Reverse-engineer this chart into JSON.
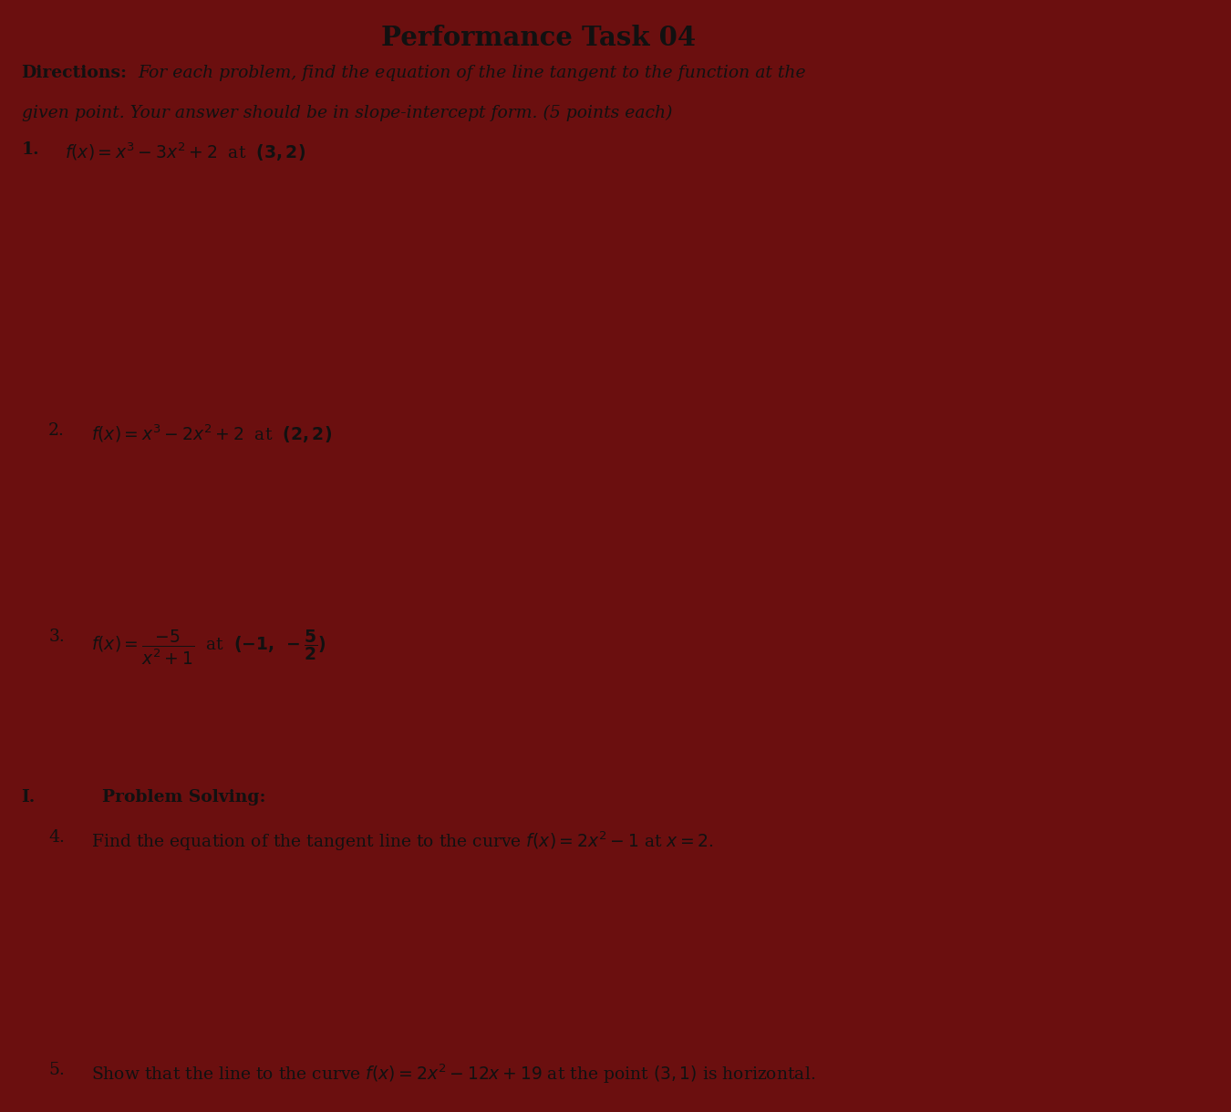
{
  "title": "Performance Task 04",
  "bg_color": "#8a8a8a",
  "side_color": "#6B0F0F",
  "text_color": "#111111",
  "title_fontsize": 21,
  "fs": 13.5,
  "directions_label": "Directions:",
  "directions_body1": "For each problem, find the equation of the line tangent to the function at the",
  "directions_body2": "given point. Your answer should be in slope-intercept form. (5 points each)",
  "p1_math": "f(x) = x^3 - 3x^2 + 2",
  "p1_point": "(3,2)",
  "p2_math": "f(x) = x^3 - 2x^2 + 2",
  "p2_point": "(2,2)",
  "section_label": "I.",
  "section_title": "Problem Solving:",
  "p4_text": "Find the equation of the tangent line to the curve $f(x) = 2x^2 - 1$ at $x = 2$.",
  "p5_text": "Show that the line to the curve $f(x) = 2x^2 - 12x + 19$ at the point $(3, 1)$ is horizontal."
}
